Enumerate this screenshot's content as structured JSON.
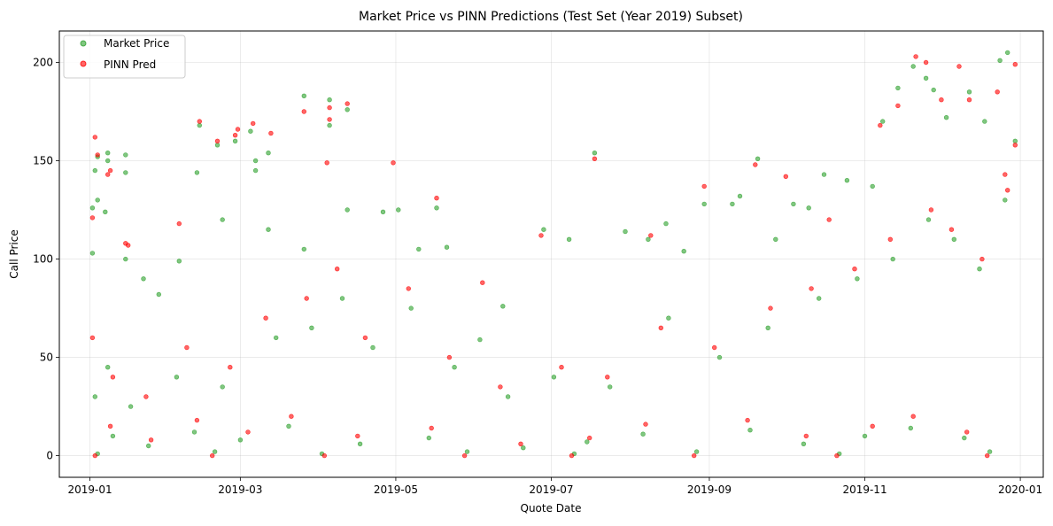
{
  "chart_data": {
    "type": "scatter",
    "title": "Market Price vs PINN Predictions (Test Set (Year 2019) Subset)",
    "xlabel": "Quote Date",
    "ylabel": "Call Price",
    "x_range": [
      "2018-12-20",
      "2020-01-10"
    ],
    "ylim": [
      -11,
      216
    ],
    "x_ticks": [
      "2019-01-01",
      "2019-03-01",
      "2019-05-01",
      "2019-07-01",
      "2019-09-01",
      "2019-11-01",
      "2020-01-01"
    ],
    "x_tick_labels": [
      "2019-01",
      "2019-03",
      "2019-05",
      "2019-07",
      "2019-09",
      "2019-11",
      "2020-01"
    ],
    "y_ticks": [
      0,
      50,
      100,
      150,
      200
    ],
    "y_tick_labels": [
      "0",
      "50",
      "100",
      "150",
      "200"
    ],
    "grid": true,
    "legend_position": "top-left",
    "series": [
      {
        "name": "Market Price",
        "color": "#2ca02c",
        "points": [
          [
            "2019-01-02",
            126
          ],
          [
            "2019-01-02",
            103
          ],
          [
            "2019-01-03",
            145
          ],
          [
            "2019-01-04",
            130
          ],
          [
            "2019-01-04",
            152
          ],
          [
            "2019-01-07",
            124
          ],
          [
            "2019-01-08",
            154
          ],
          [
            "2019-01-08",
            150
          ],
          [
            "2019-01-15",
            153
          ],
          [
            "2019-01-15",
            144
          ],
          [
            "2019-01-15",
            100
          ],
          [
            "2019-01-22",
            90
          ],
          [
            "2019-01-28",
            82
          ],
          [
            "2019-02-05",
            99
          ],
          [
            "2019-02-12",
            144
          ],
          [
            "2019-02-13",
            168
          ],
          [
            "2019-02-20",
            158
          ],
          [
            "2019-02-22",
            120
          ],
          [
            "2019-02-27",
            160
          ],
          [
            "2019-03-05",
            165
          ],
          [
            "2019-03-07",
            150
          ],
          [
            "2019-03-07",
            145
          ],
          [
            "2019-03-12",
            154
          ],
          [
            "2019-03-12",
            115
          ],
          [
            "2019-03-26",
            183
          ],
          [
            "2019-03-26",
            105
          ],
          [
            "2019-04-05",
            181
          ],
          [
            "2019-04-05",
            168
          ],
          [
            "2019-04-12",
            176
          ],
          [
            "2019-04-12",
            125
          ],
          [
            "2019-04-26",
            124
          ],
          [
            "2019-05-02",
            125
          ],
          [
            "2019-05-10",
            105
          ],
          [
            "2019-05-17",
            126
          ],
          [
            "2019-05-21",
            106
          ],
          [
            "2019-06-03",
            59
          ],
          [
            "2019-06-12",
            76
          ],
          [
            "2019-06-28",
            115
          ],
          [
            "2019-07-08",
            110
          ],
          [
            "2019-07-18",
            154
          ],
          [
            "2019-07-30",
            114
          ],
          [
            "2019-08-08",
            110
          ],
          [
            "2019-08-15",
            118
          ],
          [
            "2019-08-22",
            104
          ],
          [
            "2019-08-30",
            128
          ],
          [
            "2019-09-10",
            128
          ],
          [
            "2019-09-13",
            132
          ],
          [
            "2019-09-20",
            151
          ],
          [
            "2019-09-27",
            110
          ],
          [
            "2019-10-04",
            128
          ],
          [
            "2019-10-10",
            126
          ],
          [
            "2019-10-16",
            143
          ],
          [
            "2019-10-25",
            140
          ],
          [
            "2019-11-04",
            137
          ],
          [
            "2019-11-08",
            170
          ],
          [
            "2019-11-14",
            187
          ],
          [
            "2019-11-20",
            198
          ],
          [
            "2019-11-25",
            192
          ],
          [
            "2019-11-28",
            186
          ],
          [
            "2019-12-03",
            172
          ],
          [
            "2019-12-12",
            185
          ],
          [
            "2019-12-18",
            170
          ],
          [
            "2019-12-24",
            201
          ],
          [
            "2019-12-27",
            205
          ],
          [
            "2019-12-30",
            160
          ],
          [
            "2019-01-03",
            30
          ],
          [
            "2019-01-08",
            45
          ],
          [
            "2019-01-17",
            25
          ],
          [
            "2019-02-04",
            40
          ],
          [
            "2019-02-22",
            35
          ],
          [
            "2019-03-15",
            60
          ],
          [
            "2019-03-29",
            65
          ],
          [
            "2019-04-10",
            80
          ],
          [
            "2019-04-22",
            55
          ],
          [
            "2019-05-07",
            75
          ],
          [
            "2019-05-24",
            45
          ],
          [
            "2019-06-14",
            30
          ],
          [
            "2019-07-02",
            40
          ],
          [
            "2019-07-24",
            35
          ],
          [
            "2019-08-16",
            70
          ],
          [
            "2019-09-05",
            50
          ],
          [
            "2019-09-24",
            65
          ],
          [
            "2019-10-14",
            80
          ],
          [
            "2019-10-29",
            90
          ],
          [
            "2019-11-12",
            100
          ],
          [
            "2019-11-26",
            120
          ],
          [
            "2019-12-06",
            110
          ],
          [
            "2019-12-16",
            95
          ],
          [
            "2019-12-26",
            130
          ],
          [
            "2019-01-10",
            10
          ],
          [
            "2019-01-24",
            5
          ],
          [
            "2019-02-11",
            12
          ],
          [
            "2019-03-01",
            8
          ],
          [
            "2019-03-20",
            15
          ],
          [
            "2019-04-17",
            6
          ],
          [
            "2019-05-14",
            9
          ],
          [
            "2019-06-20",
            4
          ],
          [
            "2019-07-15",
            7
          ],
          [
            "2019-08-06",
            11
          ],
          [
            "2019-09-17",
            13
          ],
          [
            "2019-10-08",
            6
          ],
          [
            "2019-11-01",
            10
          ],
          [
            "2019-11-19",
            14
          ],
          [
            "2019-12-10",
            9
          ],
          [
            "2019-01-04",
            1
          ],
          [
            "2019-02-19",
            2
          ],
          [
            "2019-04-02",
            1
          ],
          [
            "2019-05-29",
            2
          ],
          [
            "2019-07-10",
            1
          ],
          [
            "2019-08-27",
            2
          ],
          [
            "2019-10-22",
            1
          ],
          [
            "2019-12-20",
            2
          ]
        ]
      },
      {
        "name": "PINN Pred",
        "color": "#ff0000",
        "points": [
          [
            "2019-01-03",
            162
          ],
          [
            "2019-01-04",
            153
          ],
          [
            "2019-01-02",
            121
          ],
          [
            "2019-01-08",
            143
          ],
          [
            "2019-01-09",
            145
          ],
          [
            "2019-01-15",
            108
          ],
          [
            "2019-01-16",
            107
          ],
          [
            "2019-02-05",
            118
          ],
          [
            "2019-02-13",
            170
          ],
          [
            "2019-02-20",
            160
          ],
          [
            "2019-02-27",
            163
          ],
          [
            "2019-02-28",
            166
          ],
          [
            "2019-03-06",
            169
          ],
          [
            "2019-03-13",
            164
          ],
          [
            "2019-03-26",
            175
          ],
          [
            "2019-04-04",
            149
          ],
          [
            "2019-04-05",
            177
          ],
          [
            "2019-04-05",
            171
          ],
          [
            "2019-04-12",
            179
          ],
          [
            "2019-04-30",
            149
          ],
          [
            "2019-05-17",
            131
          ],
          [
            "2019-06-04",
            88
          ],
          [
            "2019-06-27",
            112
          ],
          [
            "2019-07-18",
            151
          ],
          [
            "2019-08-09",
            112
          ],
          [
            "2019-08-30",
            137
          ],
          [
            "2019-09-19",
            148
          ],
          [
            "2019-10-01",
            142
          ],
          [
            "2019-10-18",
            120
          ],
          [
            "2019-11-07",
            168
          ],
          [
            "2019-11-14",
            178
          ],
          [
            "2019-11-21",
            203
          ],
          [
            "2019-11-25",
            200
          ],
          [
            "2019-12-01",
            181
          ],
          [
            "2019-12-08",
            198
          ],
          [
            "2019-12-12",
            181
          ],
          [
            "2019-12-23",
            185
          ],
          [
            "2019-12-30",
            199
          ],
          [
            "2019-12-30",
            158
          ],
          [
            "2019-12-26",
            143
          ],
          [
            "2019-01-02",
            60
          ],
          [
            "2019-01-10",
            40
          ],
          [
            "2019-01-23",
            30
          ],
          [
            "2019-02-08",
            55
          ],
          [
            "2019-02-25",
            45
          ],
          [
            "2019-03-11",
            70
          ],
          [
            "2019-03-27",
            80
          ],
          [
            "2019-04-08",
            95
          ],
          [
            "2019-04-19",
            60
          ],
          [
            "2019-05-06",
            85
          ],
          [
            "2019-05-22",
            50
          ],
          [
            "2019-06-11",
            35
          ],
          [
            "2019-07-05",
            45
          ],
          [
            "2019-07-23",
            40
          ],
          [
            "2019-08-13",
            65
          ],
          [
            "2019-09-03",
            55
          ],
          [
            "2019-09-25",
            75
          ],
          [
            "2019-10-11",
            85
          ],
          [
            "2019-10-28",
            95
          ],
          [
            "2019-11-11",
            110
          ],
          [
            "2019-11-27",
            125
          ],
          [
            "2019-12-05",
            115
          ],
          [
            "2019-12-17",
            100
          ],
          [
            "2019-12-27",
            135
          ],
          [
            "2019-01-09",
            15
          ],
          [
            "2019-01-25",
            8
          ],
          [
            "2019-02-12",
            18
          ],
          [
            "2019-03-04",
            12
          ],
          [
            "2019-03-21",
            20
          ],
          [
            "2019-04-16",
            10
          ],
          [
            "2019-05-15",
            14
          ],
          [
            "2019-06-19",
            6
          ],
          [
            "2019-07-16",
            9
          ],
          [
            "2019-08-07",
            16
          ],
          [
            "2019-09-16",
            18
          ],
          [
            "2019-10-09",
            10
          ],
          [
            "2019-11-04",
            15
          ],
          [
            "2019-11-20",
            20
          ],
          [
            "2019-12-11",
            12
          ],
          [
            "2019-01-03",
            0
          ],
          [
            "2019-02-18",
            0
          ],
          [
            "2019-04-03",
            0
          ],
          [
            "2019-05-28",
            0
          ],
          [
            "2019-07-09",
            0
          ],
          [
            "2019-08-26",
            0
          ],
          [
            "2019-10-21",
            0
          ],
          [
            "2019-12-19",
            0
          ]
        ]
      }
    ]
  }
}
